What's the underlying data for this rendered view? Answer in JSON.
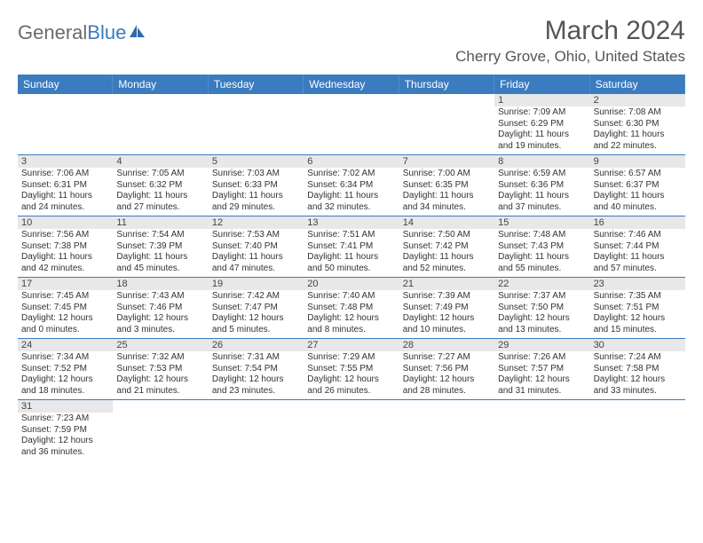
{
  "logo": {
    "text_gray": "General",
    "text_blue": "Blue"
  },
  "title": "March 2024",
  "location": "Cherry Grove, Ohio, United States",
  "colors": {
    "header_bar": "#3b7bbf",
    "weekday_text": "#ffffff",
    "day_num_bg": "#e8e8e8",
    "row_border": "#3b7bbf",
    "body_text": "#333333",
    "title_text": "#555555"
  },
  "weekdays": [
    "Sunday",
    "Monday",
    "Tuesday",
    "Wednesday",
    "Thursday",
    "Friday",
    "Saturday"
  ],
  "weeks": [
    {
      "nums": [
        "",
        "",
        "",
        "",
        "",
        "1",
        "2"
      ],
      "cells": [
        null,
        null,
        null,
        null,
        null,
        {
          "sunrise": "Sunrise: 7:09 AM",
          "sunset": "Sunset: 6:29 PM",
          "day1": "Daylight: 11 hours",
          "day2": "and 19 minutes."
        },
        {
          "sunrise": "Sunrise: 7:08 AM",
          "sunset": "Sunset: 6:30 PM",
          "day1": "Daylight: 11 hours",
          "day2": "and 22 minutes."
        }
      ]
    },
    {
      "nums": [
        "3",
        "4",
        "5",
        "6",
        "7",
        "8",
        "9"
      ],
      "cells": [
        {
          "sunrise": "Sunrise: 7:06 AM",
          "sunset": "Sunset: 6:31 PM",
          "day1": "Daylight: 11 hours",
          "day2": "and 24 minutes."
        },
        {
          "sunrise": "Sunrise: 7:05 AM",
          "sunset": "Sunset: 6:32 PM",
          "day1": "Daylight: 11 hours",
          "day2": "and 27 minutes."
        },
        {
          "sunrise": "Sunrise: 7:03 AM",
          "sunset": "Sunset: 6:33 PM",
          "day1": "Daylight: 11 hours",
          "day2": "and 29 minutes."
        },
        {
          "sunrise": "Sunrise: 7:02 AM",
          "sunset": "Sunset: 6:34 PM",
          "day1": "Daylight: 11 hours",
          "day2": "and 32 minutes."
        },
        {
          "sunrise": "Sunrise: 7:00 AM",
          "sunset": "Sunset: 6:35 PM",
          "day1": "Daylight: 11 hours",
          "day2": "and 34 minutes."
        },
        {
          "sunrise": "Sunrise: 6:59 AM",
          "sunset": "Sunset: 6:36 PM",
          "day1": "Daylight: 11 hours",
          "day2": "and 37 minutes."
        },
        {
          "sunrise": "Sunrise: 6:57 AM",
          "sunset": "Sunset: 6:37 PM",
          "day1": "Daylight: 11 hours",
          "day2": "and 40 minutes."
        }
      ]
    },
    {
      "nums": [
        "10",
        "11",
        "12",
        "13",
        "14",
        "15",
        "16"
      ],
      "cells": [
        {
          "sunrise": "Sunrise: 7:56 AM",
          "sunset": "Sunset: 7:38 PM",
          "day1": "Daylight: 11 hours",
          "day2": "and 42 minutes."
        },
        {
          "sunrise": "Sunrise: 7:54 AM",
          "sunset": "Sunset: 7:39 PM",
          "day1": "Daylight: 11 hours",
          "day2": "and 45 minutes."
        },
        {
          "sunrise": "Sunrise: 7:53 AM",
          "sunset": "Sunset: 7:40 PM",
          "day1": "Daylight: 11 hours",
          "day2": "and 47 minutes."
        },
        {
          "sunrise": "Sunrise: 7:51 AM",
          "sunset": "Sunset: 7:41 PM",
          "day1": "Daylight: 11 hours",
          "day2": "and 50 minutes."
        },
        {
          "sunrise": "Sunrise: 7:50 AM",
          "sunset": "Sunset: 7:42 PM",
          "day1": "Daylight: 11 hours",
          "day2": "and 52 minutes."
        },
        {
          "sunrise": "Sunrise: 7:48 AM",
          "sunset": "Sunset: 7:43 PM",
          "day1": "Daylight: 11 hours",
          "day2": "and 55 minutes."
        },
        {
          "sunrise": "Sunrise: 7:46 AM",
          "sunset": "Sunset: 7:44 PM",
          "day1": "Daylight: 11 hours",
          "day2": "and 57 minutes."
        }
      ]
    },
    {
      "nums": [
        "17",
        "18",
        "19",
        "20",
        "21",
        "22",
        "23"
      ],
      "cells": [
        {
          "sunrise": "Sunrise: 7:45 AM",
          "sunset": "Sunset: 7:45 PM",
          "day1": "Daylight: 12 hours",
          "day2": "and 0 minutes."
        },
        {
          "sunrise": "Sunrise: 7:43 AM",
          "sunset": "Sunset: 7:46 PM",
          "day1": "Daylight: 12 hours",
          "day2": "and 3 minutes."
        },
        {
          "sunrise": "Sunrise: 7:42 AM",
          "sunset": "Sunset: 7:47 PM",
          "day1": "Daylight: 12 hours",
          "day2": "and 5 minutes."
        },
        {
          "sunrise": "Sunrise: 7:40 AM",
          "sunset": "Sunset: 7:48 PM",
          "day1": "Daylight: 12 hours",
          "day2": "and 8 minutes."
        },
        {
          "sunrise": "Sunrise: 7:39 AM",
          "sunset": "Sunset: 7:49 PM",
          "day1": "Daylight: 12 hours",
          "day2": "and 10 minutes."
        },
        {
          "sunrise": "Sunrise: 7:37 AM",
          "sunset": "Sunset: 7:50 PM",
          "day1": "Daylight: 12 hours",
          "day2": "and 13 minutes."
        },
        {
          "sunrise": "Sunrise: 7:35 AM",
          "sunset": "Sunset: 7:51 PM",
          "day1": "Daylight: 12 hours",
          "day2": "and 15 minutes."
        }
      ]
    },
    {
      "nums": [
        "24",
        "25",
        "26",
        "27",
        "28",
        "29",
        "30"
      ],
      "cells": [
        {
          "sunrise": "Sunrise: 7:34 AM",
          "sunset": "Sunset: 7:52 PM",
          "day1": "Daylight: 12 hours",
          "day2": "and 18 minutes."
        },
        {
          "sunrise": "Sunrise: 7:32 AM",
          "sunset": "Sunset: 7:53 PM",
          "day1": "Daylight: 12 hours",
          "day2": "and 21 minutes."
        },
        {
          "sunrise": "Sunrise: 7:31 AM",
          "sunset": "Sunset: 7:54 PM",
          "day1": "Daylight: 12 hours",
          "day2": "and 23 minutes."
        },
        {
          "sunrise": "Sunrise: 7:29 AM",
          "sunset": "Sunset: 7:55 PM",
          "day1": "Daylight: 12 hours",
          "day2": "and 26 minutes."
        },
        {
          "sunrise": "Sunrise: 7:27 AM",
          "sunset": "Sunset: 7:56 PM",
          "day1": "Daylight: 12 hours",
          "day2": "and 28 minutes."
        },
        {
          "sunrise": "Sunrise: 7:26 AM",
          "sunset": "Sunset: 7:57 PM",
          "day1": "Daylight: 12 hours",
          "day2": "and 31 minutes."
        },
        {
          "sunrise": "Sunrise: 7:24 AM",
          "sunset": "Sunset: 7:58 PM",
          "day1": "Daylight: 12 hours",
          "day2": "and 33 minutes."
        }
      ]
    },
    {
      "nums": [
        "31",
        "",
        "",
        "",
        "",
        "",
        ""
      ],
      "cells": [
        {
          "sunrise": "Sunrise: 7:23 AM",
          "sunset": "Sunset: 7:59 PM",
          "day1": "Daylight: 12 hours",
          "day2": "and 36 minutes."
        },
        null,
        null,
        null,
        null,
        null,
        null
      ]
    }
  ]
}
